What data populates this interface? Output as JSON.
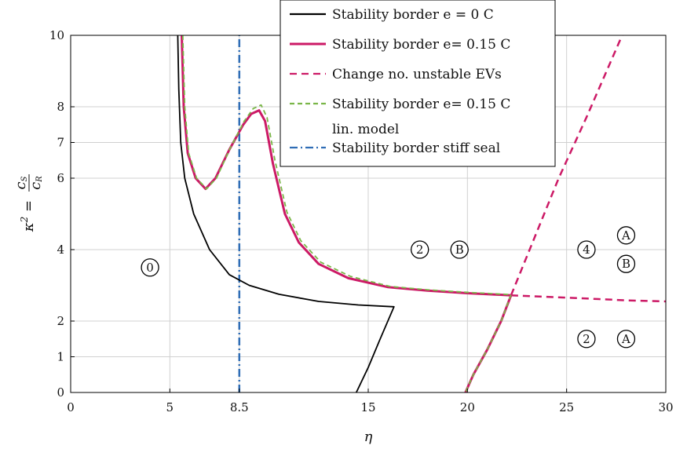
{
  "chart_data": {
    "type": "line",
    "xlabel": "η",
    "ylabel": "κ² = cS / cR",
    "xlim": [
      0,
      30
    ],
    "ylim": [
      0,
      10
    ],
    "x_ticks": [
      {
        "value": 0,
        "label": "0"
      },
      {
        "value": 5,
        "label": "5"
      },
      {
        "value": 8.5,
        "label": "8.5"
      },
      {
        "value": 15,
        "label": "15"
      },
      {
        "value": 20,
        "label": "20"
      },
      {
        "value": 25,
        "label": "25"
      },
      {
        "value": 30,
        "label": "30"
      }
    ],
    "y_ticks": [
      {
        "value": 0,
        "label": "0"
      },
      {
        "value": 1,
        "label": "1"
      },
      {
        "value": 2,
        "label": "2"
      },
      {
        "value": 4,
        "label": "4"
      },
      {
        "value": 6,
        "label": "6"
      },
      {
        "value": 7,
        "label": "7"
      },
      {
        "value": 8,
        "label": "8"
      },
      {
        "value": 10,
        "label": "10"
      }
    ],
    "grid": true,
    "legend_position": "top-center",
    "series": [
      {
        "name": "Stability border e = 0 C",
        "color": "#000000",
        "style": "solid",
        "segments": [
          [
            [
              5.4,
              10
            ],
            [
              5.45,
              8.5
            ],
            [
              5.55,
              7
            ],
            [
              5.75,
              6
            ],
            [
              6.2,
              5
            ],
            [
              7.0,
              4
            ],
            [
              8.0,
              3.3
            ],
            [
              9.0,
              3.0
            ],
            [
              10.5,
              2.75
            ],
            [
              12.5,
              2.55
            ],
            [
              14.5,
              2.45
            ],
            [
              16.3,
              2.4
            ],
            [
              15.6,
              1.5
            ],
            [
              15.0,
              0.7
            ],
            [
              14.4,
              0
            ]
          ]
        ]
      },
      {
        "name": "Stability border e= 0.15 C",
        "color": "#cc1a66",
        "style": "solid",
        "segments": [
          [
            [
              5.6,
              10
            ],
            [
              5.7,
              8.0
            ],
            [
              5.9,
              6.7
            ],
            [
              6.3,
              6.0
            ],
            [
              6.8,
              5.7
            ],
            [
              7.3,
              6.0
            ],
            [
              8.0,
              6.8
            ],
            [
              8.7,
              7.5
            ],
            [
              9.1,
              7.8
            ],
            [
              9.5,
              7.9
            ],
            [
              9.8,
              7.6
            ],
            [
              10.2,
              6.4
            ],
            [
              10.8,
              5.0
            ],
            [
              11.5,
              4.2
            ],
            [
              12.5,
              3.6
            ],
            [
              14.0,
              3.2
            ],
            [
              16.0,
              2.95
            ],
            [
              18.0,
              2.85
            ],
            [
              20.0,
              2.78
            ],
            [
              22.2,
              2.72
            ]
          ],
          [
            [
              22.2,
              2.72
            ],
            [
              21.7,
              2.0
            ],
            [
              21.0,
              1.2
            ],
            [
              20.3,
              0.5
            ],
            [
              19.9,
              0
            ]
          ]
        ]
      },
      {
        "name": "Change no. unstable EVs",
        "color": "#cc1a66",
        "style": "dashed",
        "segments": [
          [
            [
              22.2,
              2.72
            ],
            [
              24.6,
              6.0
            ],
            [
              26.0,
              7.7
            ],
            [
              27.8,
              10
            ]
          ],
          [
            [
              22.2,
              2.72
            ],
            [
              24.0,
              2.68
            ],
            [
              26.0,
              2.63
            ],
            [
              28.0,
              2.58
            ],
            [
              30.0,
              2.55
            ]
          ]
        ]
      },
      {
        "name": "Stability border e= 0.15 C lin. model",
        "color": "#7ab648",
        "style": "dashed",
        "segments": [
          [
            [
              5.65,
              10
            ],
            [
              5.75,
              8.0
            ],
            [
              5.95,
              6.7
            ],
            [
              6.35,
              6.0
            ],
            [
              6.85,
              5.7
            ],
            [
              7.35,
              6.0
            ],
            [
              8.05,
              6.85
            ],
            [
              8.75,
              7.6
            ],
            [
              9.2,
              7.95
            ],
            [
              9.6,
              8.05
            ],
            [
              9.9,
              7.7
            ],
            [
              10.3,
              6.5
            ],
            [
              10.9,
              5.05
            ],
            [
              11.6,
              4.25
            ],
            [
              12.6,
              3.65
            ],
            [
              14.1,
              3.25
            ],
            [
              16.1,
              2.97
            ],
            [
              18.1,
              2.87
            ],
            [
              20.1,
              2.8
            ],
            [
              22.2,
              2.74
            ],
            [
              21.7,
              2.0
            ],
            [
              21.0,
              1.2
            ],
            [
              20.3,
              0.5
            ],
            [
              19.9,
              0
            ]
          ]
        ]
      },
      {
        "name": "Stability border stiff seal",
        "color": "#2f6db5",
        "style": "dashdot",
        "segments": [
          [
            [
              8.5,
              0
            ],
            [
              8.5,
              10
            ]
          ]
        ]
      }
    ],
    "annotations": [
      {
        "text": "0",
        "x": 4,
        "y": 3.5,
        "circled": true
      },
      {
        "text": "2",
        "x": 17.6,
        "y": 4.0,
        "circled": true
      },
      {
        "text": "B",
        "x": 19.6,
        "y": 4.0,
        "circled": true
      },
      {
        "text": "4",
        "x": 26.0,
        "y": 4.0,
        "circled": true
      },
      {
        "text": "A",
        "x": 28.0,
        "y": 4.4,
        "circled": true
      },
      {
        "text": "B",
        "x": 28.0,
        "y": 3.6,
        "circled": true
      },
      {
        "text": "2",
        "x": 26.0,
        "y": 1.5,
        "circled": true
      },
      {
        "text": "A",
        "x": 28.0,
        "y": 1.5,
        "circled": true
      }
    ]
  }
}
